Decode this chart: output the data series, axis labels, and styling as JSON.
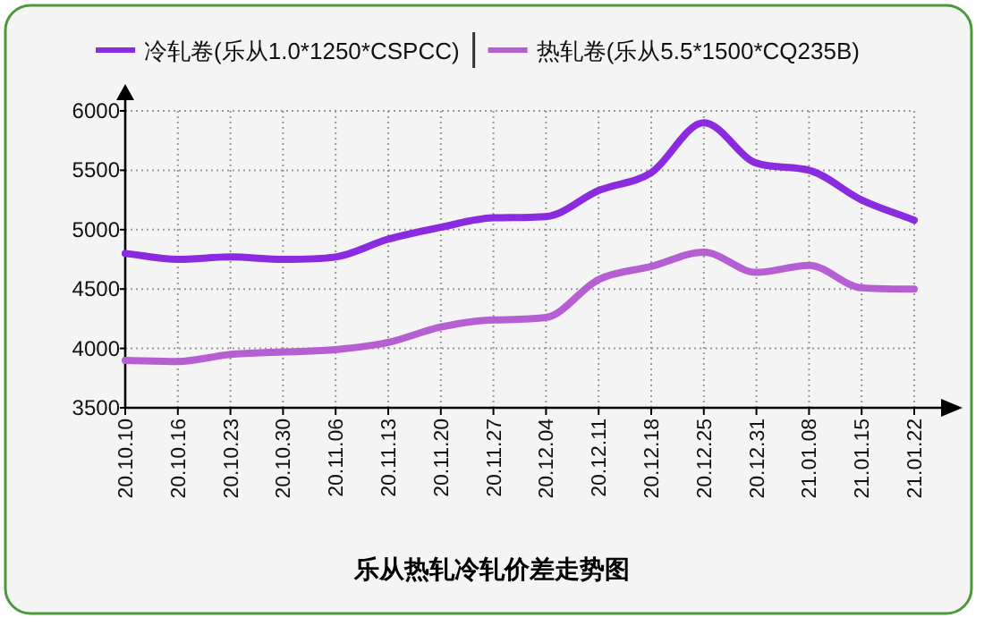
{
  "chart_data": {
    "type": "line",
    "title": "乐从热轧冷轧价差走势图",
    "categories": [
      "20.10.10",
      "20.10.16",
      "20.10.23",
      "20.10.30",
      "20.11.06",
      "20.11.13",
      "20.11.20",
      "20.11.27",
      "20.12.04",
      "20.12.11",
      "20.12.18",
      "20.12.25",
      "20.12.31",
      "21.01.08",
      "21.01.15",
      "21.01.22"
    ],
    "series": [
      {
        "name": "冷轧卷(乐从1.0*1250*CSPCC)",
        "color": "#8a2be0",
        "values": [
          4800,
          4750,
          4770,
          4750,
          4770,
          4920,
          5020,
          5100,
          5110,
          5330,
          5480,
          5900,
          5560,
          5500,
          5250,
          5080
        ]
      },
      {
        "name": "热轧卷(乐从5.5*1500*CQ235B)",
        "color": "#b65fd2",
        "values": [
          3900,
          3890,
          3950,
          3970,
          3990,
          4050,
          4180,
          4240,
          4260,
          4580,
          4690,
          4810,
          4640,
          4700,
          4510,
          4500
        ]
      }
    ],
    "ylim": [
      3500,
      6000
    ],
    "yticks": [
      3500,
      4000,
      4500,
      5000,
      5500,
      6000
    ],
    "grid": true,
    "legend": "top"
  }
}
